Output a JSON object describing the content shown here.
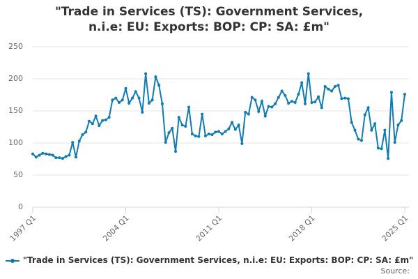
{
  "chart_data": {
    "type": "line",
    "title": "\"Trade in Services (TS): Government Services, n.i.e: EU: Exports: BOP: CP: SA: £m\"",
    "source": "Source:",
    "categories": [
      "1997 Q1",
      null,
      null,
      null,
      null,
      null,
      null,
      null,
      null,
      null,
      null,
      null,
      null,
      null,
      null,
      null,
      null,
      null,
      null,
      null,
      null,
      null,
      null,
      null,
      null,
      null,
      null,
      null,
      "2004 Q1",
      null,
      null,
      null,
      null,
      null,
      null,
      null,
      null,
      null,
      null,
      null,
      null,
      null,
      null,
      null,
      null,
      null,
      null,
      null,
      null,
      null,
      null,
      null,
      null,
      null,
      null,
      null,
      "2011 Q1",
      null,
      null,
      null,
      null,
      null,
      null,
      null,
      null,
      null,
      null,
      null,
      null,
      null,
      null,
      null,
      null,
      null,
      null,
      null,
      null,
      null,
      null,
      null,
      null,
      null,
      null,
      null,
      "2018 Q1",
      null,
      null,
      null,
      null,
      null,
      null,
      null,
      null,
      null,
      null,
      null,
      null,
      null,
      null,
      null,
      null,
      null,
      null,
      null,
      null,
      null,
      null,
      null,
      null,
      null,
      null,
      null,
      "2025 Q1"
    ],
    "series": [
      {
        "name": "\"Trade in Services (TS): Government Services, n.i.e: EU: Exports: BOP: CP: SA: £m\"",
        "color": "#0e7bb5",
        "values": [
          83,
          78,
          81,
          84,
          83,
          82,
          81,
          77,
          77,
          76,
          79,
          81,
          101,
          78,
          103,
          113,
          117,
          134,
          130,
          142,
          127,
          135,
          136,
          140,
          167,
          170,
          163,
          167,
          185,
          162,
          170,
          180,
          170,
          148,
          208,
          162,
          167,
          203,
          190,
          161,
          101,
          116,
          123,
          87,
          140,
          128,
          126,
          156,
          114,
          111,
          110,
          145,
          111,
          114,
          113,
          117,
          118,
          114,
          118,
          122,
          132,
          121,
          128,
          99,
          148,
          145,
          171,
          167,
          149,
          165,
          142,
          157,
          156,
          161,
          171,
          181,
          174,
          162,
          165,
          163,
          176,
          194,
          161,
          208,
          163,
          164,
          172,
          155,
          188,
          184,
          181,
          188,
          190,
          169,
          170,
          169,
          132,
          120,
          106,
          104,
          144,
          155,
          120,
          130,
          92,
          91,
          120,
          76,
          179,
          101,
          128,
          135,
          176
        ]
      }
    ],
    "ylim": [
      0,
      250
    ],
    "yticks": [
      0,
      50,
      100,
      150,
      200,
      250
    ],
    "grid": true
  }
}
